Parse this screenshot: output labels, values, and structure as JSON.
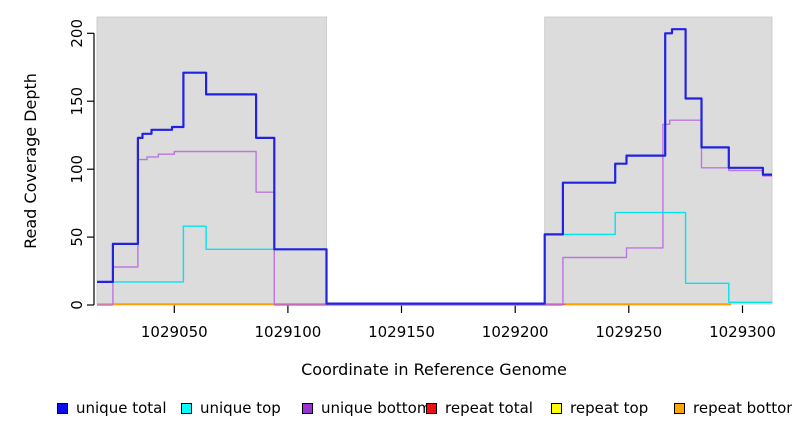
{
  "chart_data": {
    "type": "line",
    "step": true,
    "title": "",
    "xlabel": "Coordinate in Reference Genome",
    "ylabel": "Read Coverage Depth",
    "xlim": [
      1029016,
      1029313
    ],
    "ylim": [
      0,
      212
    ],
    "x_ticks": [
      1029050,
      1029100,
      1029150,
      1029200,
      1029250,
      1029300
    ],
    "y_ticks": [
      0,
      50,
      100,
      150,
      200
    ],
    "grid": false,
    "panel_color": "#dcdcdc",
    "masked_regions": [
      {
        "x0": 1029016,
        "x1": 1029117
      },
      {
        "x0": 1029213,
        "x1": 1029313
      }
    ],
    "series": [
      {
        "name": "repeat top",
        "color": "#ffff00",
        "width": 1.4,
        "segments": [
          [
            [
              1029016,
              0.5
            ],
            [
              1029094,
              0.5
            ]
          ],
          [
            [
              1029222,
              0.5
            ],
            [
              1029295,
              0.5
            ]
          ]
        ]
      },
      {
        "name": "repeat total",
        "color": "#e04747",
        "width": 1.6,
        "segments": [
          [
            [
              1029094,
              0.5
            ],
            [
              1029117,
              0.5
            ]
          ],
          [
            [
              1029213,
              0.5
            ],
            [
              1029295,
              0.5
            ]
          ]
        ]
      },
      {
        "name": "repeat bottom",
        "color": "#ff9e00",
        "width": 2,
        "segments": [
          [
            [
              1029016,
              0.5
            ],
            [
              1029094,
              0.5
            ]
          ],
          [
            [
              1029222,
              0.5
            ],
            [
              1029295,
              0.5
            ]
          ]
        ]
      },
      {
        "name": "unique bottom",
        "color": "#bb76e0",
        "width": 1.4,
        "segments": [
          [
            [
              1029016,
              0
            ],
            [
              1029023,
              28
            ],
            [
              1029034,
              107
            ],
            [
              1029038,
              109
            ],
            [
              1029043,
              111
            ],
            [
              1029050,
              113
            ],
            [
              1029086,
              83
            ],
            [
              1029094,
              0
            ],
            [
              1029213,
              0
            ],
            [
              1029221,
              35
            ],
            [
              1029249,
              42
            ],
            [
              1029265,
              133
            ],
            [
              1029268,
              136
            ],
            [
              1029282,
              101
            ],
            [
              1029294,
              99
            ],
            [
              1029309,
              95
            ],
            [
              1029313,
              95
            ]
          ]
        ]
      },
      {
        "name": "unique top",
        "color": "#00e4ef",
        "width": 1.4,
        "segments": [
          [
            [
              1029016,
              17
            ],
            [
              1029054,
              58
            ],
            [
              1029064,
              41
            ],
            [
              1029117,
              1
            ],
            [
              1029213,
              52
            ],
            [
              1029244,
              68
            ],
            [
              1029275,
              16
            ],
            [
              1029294,
              2
            ],
            [
              1029313,
              2
            ]
          ]
        ]
      },
      {
        "name": "unique total",
        "color": "#2222e0",
        "width": 2.2,
        "segments": [
          [
            [
              1029016,
              17
            ],
            [
              1029023,
              45
            ],
            [
              1029034,
              123
            ],
            [
              1029036,
              126
            ],
            [
              1029040,
              129
            ],
            [
              1029049,
              131
            ],
            [
              1029054,
              171
            ],
            [
              1029064,
              155
            ],
            [
              1029086,
              123
            ],
            [
              1029094,
              41
            ],
            [
              1029117,
              1
            ],
            [
              1029213,
              52
            ],
            [
              1029221,
              90
            ],
            [
              1029244,
              104
            ],
            [
              1029249,
              110
            ],
            [
              1029266,
              200
            ],
            [
              1029269,
              203
            ],
            [
              1029275,
              152
            ],
            [
              1029282,
              116
            ],
            [
              1029294,
              101
            ],
            [
              1029309,
              96
            ],
            [
              1029313,
              96
            ]
          ]
        ]
      }
    ],
    "legend": [
      {
        "label": "unique total",
        "swatch": "#0b0bee"
      },
      {
        "label": "unique top",
        "swatch": "#00ffff"
      },
      {
        "label": "unique bottom",
        "swatch": "#9a30d6"
      },
      {
        "label": "repeat total",
        "swatch": "#ee1111"
      },
      {
        "label": "repeat top",
        "swatch": "#ffff00"
      },
      {
        "label": "repeat bottom",
        "swatch": "#ffa405"
      }
    ],
    "legend_position": "bottom"
  }
}
